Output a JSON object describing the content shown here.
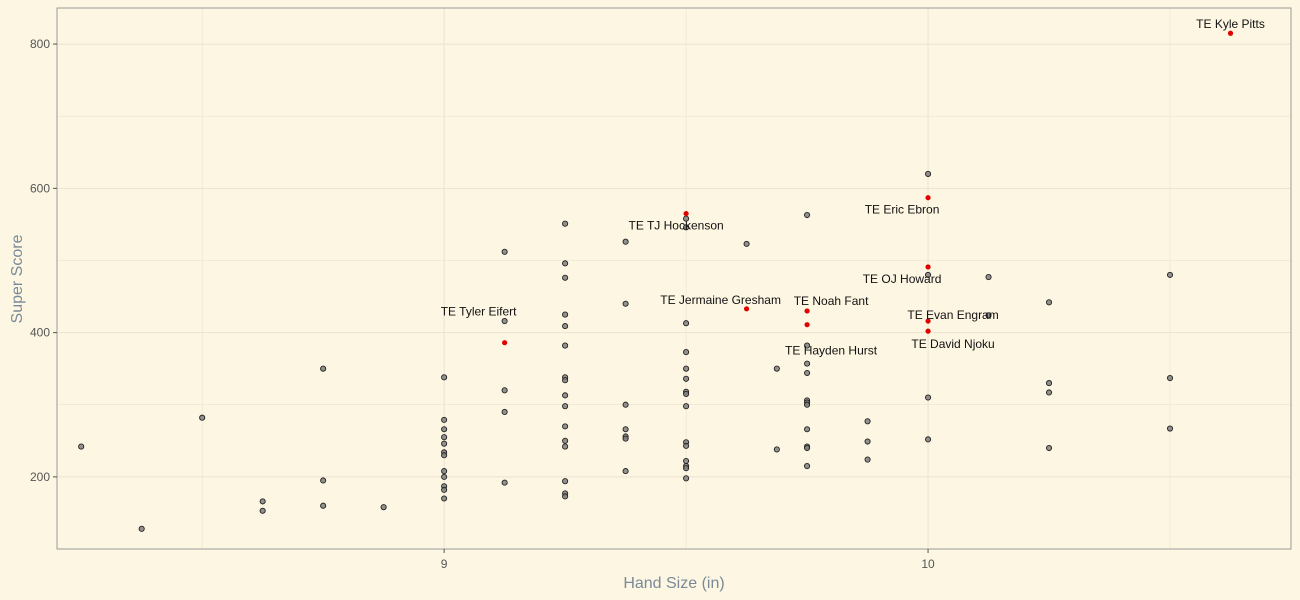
{
  "chart_data": {
    "type": "scatter",
    "xlabel": "Hand Size (in)",
    "ylabel": "Super Score",
    "xlim": [
      8.2,
      10.75
    ],
    "ylim": [
      100,
      850
    ],
    "xticks": [
      9,
      10
    ],
    "yticks": [
      200,
      400,
      600,
      800
    ],
    "grid": true,
    "colors": {
      "background": "#fdf6e3",
      "grid": "#ebe3d0",
      "point": "#7f7f7f",
      "highlight": "#e00000",
      "axis_text": "#7a8a99"
    },
    "series": [
      {
        "points": [
          [
            8.25,
            242
          ],
          [
            8.375,
            128
          ],
          [
            8.5,
            282
          ],
          [
            8.625,
            166
          ],
          [
            8.625,
            153
          ],
          [
            8.75,
            350
          ],
          [
            8.75,
            195
          ],
          [
            8.75,
            160
          ],
          [
            8.875,
            158
          ],
          [
            9.0,
            338
          ],
          [
            9.0,
            279
          ],
          [
            9.0,
            266
          ],
          [
            9.0,
            255
          ],
          [
            9.0,
            246
          ],
          [
            9.0,
            234
          ],
          [
            9.0,
            230
          ],
          [
            9.0,
            208
          ],
          [
            9.0,
            200
          ],
          [
            9.0,
            187
          ],
          [
            9.0,
            182
          ],
          [
            9.0,
            170
          ],
          [
            9.125,
            512
          ],
          [
            9.125,
            416
          ],
          [
            9.125,
            320
          ],
          [
            9.125,
            290
          ],
          [
            9.125,
            192
          ],
          [
            9.25,
            551
          ],
          [
            9.25,
            496
          ],
          [
            9.25,
            476
          ],
          [
            9.25,
            425
          ],
          [
            9.25,
            409
          ],
          [
            9.25,
            382
          ],
          [
            9.25,
            338
          ],
          [
            9.25,
            334
          ],
          [
            9.25,
            313
          ],
          [
            9.25,
            298
          ],
          [
            9.25,
            270
          ],
          [
            9.25,
            250
          ],
          [
            9.25,
            242
          ],
          [
            9.25,
            194
          ],
          [
            9.25,
            177
          ],
          [
            9.25,
            173
          ],
          [
            9.375,
            526
          ],
          [
            9.375,
            440
          ],
          [
            9.375,
            300
          ],
          [
            9.375,
            266
          ],
          [
            9.375,
            256
          ],
          [
            9.375,
            253
          ],
          [
            9.375,
            208
          ],
          [
            9.5,
            558
          ],
          [
            9.5,
            546
          ],
          [
            9.5,
            413
          ],
          [
            9.5,
            373
          ],
          [
            9.5,
            350
          ],
          [
            9.5,
            336
          ],
          [
            9.5,
            318
          ],
          [
            9.5,
            315
          ],
          [
            9.5,
            298
          ],
          [
            9.5,
            248
          ],
          [
            9.5,
            243
          ],
          [
            9.5,
            222
          ],
          [
            9.5,
            215
          ],
          [
            9.5,
            212
          ],
          [
            9.5,
            198
          ],
          [
            9.625,
            523
          ],
          [
            9.6875,
            350
          ],
          [
            9.6875,
            238
          ],
          [
            9.75,
            563
          ],
          [
            9.75,
            382
          ],
          [
            9.75,
            357
          ],
          [
            9.75,
            344
          ],
          [
            9.75,
            306
          ],
          [
            9.75,
            303
          ],
          [
            9.75,
            300
          ],
          [
            9.75,
            266
          ],
          [
            9.75,
            242
          ],
          [
            9.75,
            240
          ],
          [
            9.75,
            215
          ],
          [
            9.875,
            277
          ],
          [
            9.875,
            249
          ],
          [
            9.875,
            224
          ],
          [
            10.0,
            620
          ],
          [
            10.0,
            480
          ],
          [
            10.0,
            310
          ],
          [
            10.0,
            252
          ],
          [
            10.125,
            477
          ],
          [
            10.125,
            424
          ],
          [
            10.25,
            442
          ],
          [
            10.25,
            330
          ],
          [
            10.25,
            317
          ],
          [
            10.25,
            240
          ],
          [
            10.5,
            480
          ],
          [
            10.5,
            337
          ],
          [
            10.5,
            267
          ]
        ]
      },
      {
        "points": [
          {
            "x": 10.625,
            "y": 815,
            "label": "TE Kyle Pitts"
          },
          {
            "x": 10.0,
            "y": 587,
            "label": "TE Eric Ebron"
          },
          {
            "x": 9.5,
            "y": 565,
            "label": "TE TJ Hockenson"
          },
          {
            "x": 10.0,
            "y": 491,
            "label": "TE OJ Howard"
          },
          {
            "x": 9.625,
            "y": 433,
            "label": "TE Jermaine Gresham"
          },
          {
            "x": 9.75,
            "y": 430,
            "label": "TE Noah Fant"
          },
          {
            "x": 10.0,
            "y": 416,
            "label": "TE Evan Engram"
          },
          {
            "x": 9.75,
            "y": 411,
            "label": "TE Hayden Hurst"
          },
          {
            "x": 10.0,
            "y": 402,
            "label": "TE David Njoku"
          },
          {
            "x": 9.125,
            "y": 386,
            "label": "TE Tyler Eifert"
          }
        ]
      }
    ]
  }
}
